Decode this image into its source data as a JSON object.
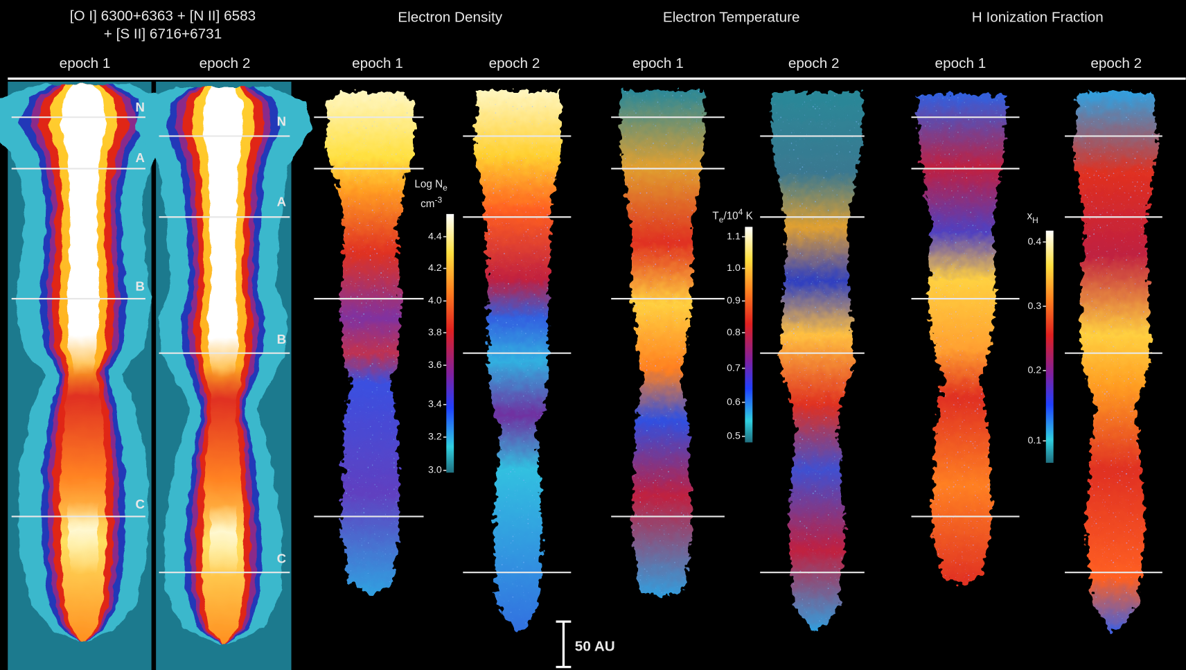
{
  "titles": {
    "emission": [
      "[O I] 6300+6363 + [N II] 6583",
      "+ [S II] 6716+6731"
    ],
    "density": "Electron Density",
    "temperature": "Electron Temperature",
    "ionization": "H Ionization Fraction"
  },
  "epochs": [
    "epoch 1",
    "epoch 2",
    "epoch 1",
    "epoch 2",
    "epoch 1",
    "epoch 2",
    "epoch 1",
    "epoch 2"
  ],
  "knots": {
    "epoch_1": [
      "N",
      "A",
      "B",
      "C"
    ],
    "epoch_2": [
      "N",
      "A",
      "B",
      "C"
    ]
  },
  "colorbars": {
    "density": {
      "label": [
        "Log N",
        "e",
        "cm",
        "-3"
      ],
      "ticks": [
        "4.4",
        "4.2",
        "4.0",
        "3.8",
        "3.6",
        "3.4",
        "3.2",
        "3.0"
      ]
    },
    "temperature": {
      "label": [
        "T",
        "e",
        "/10",
        "4",
        " K"
      ],
      "ticks": [
        "1.1",
        "1.0",
        "0.9",
        "0.8",
        "0.7",
        "0.6",
        "0.5"
      ]
    },
    "ionization": {
      "label": [
        "x",
        "H"
      ],
      "ticks": [
        "0.4",
        "0.3",
        "0.2",
        "0.1"
      ]
    }
  },
  "scale_bar": "50 AU"
}
